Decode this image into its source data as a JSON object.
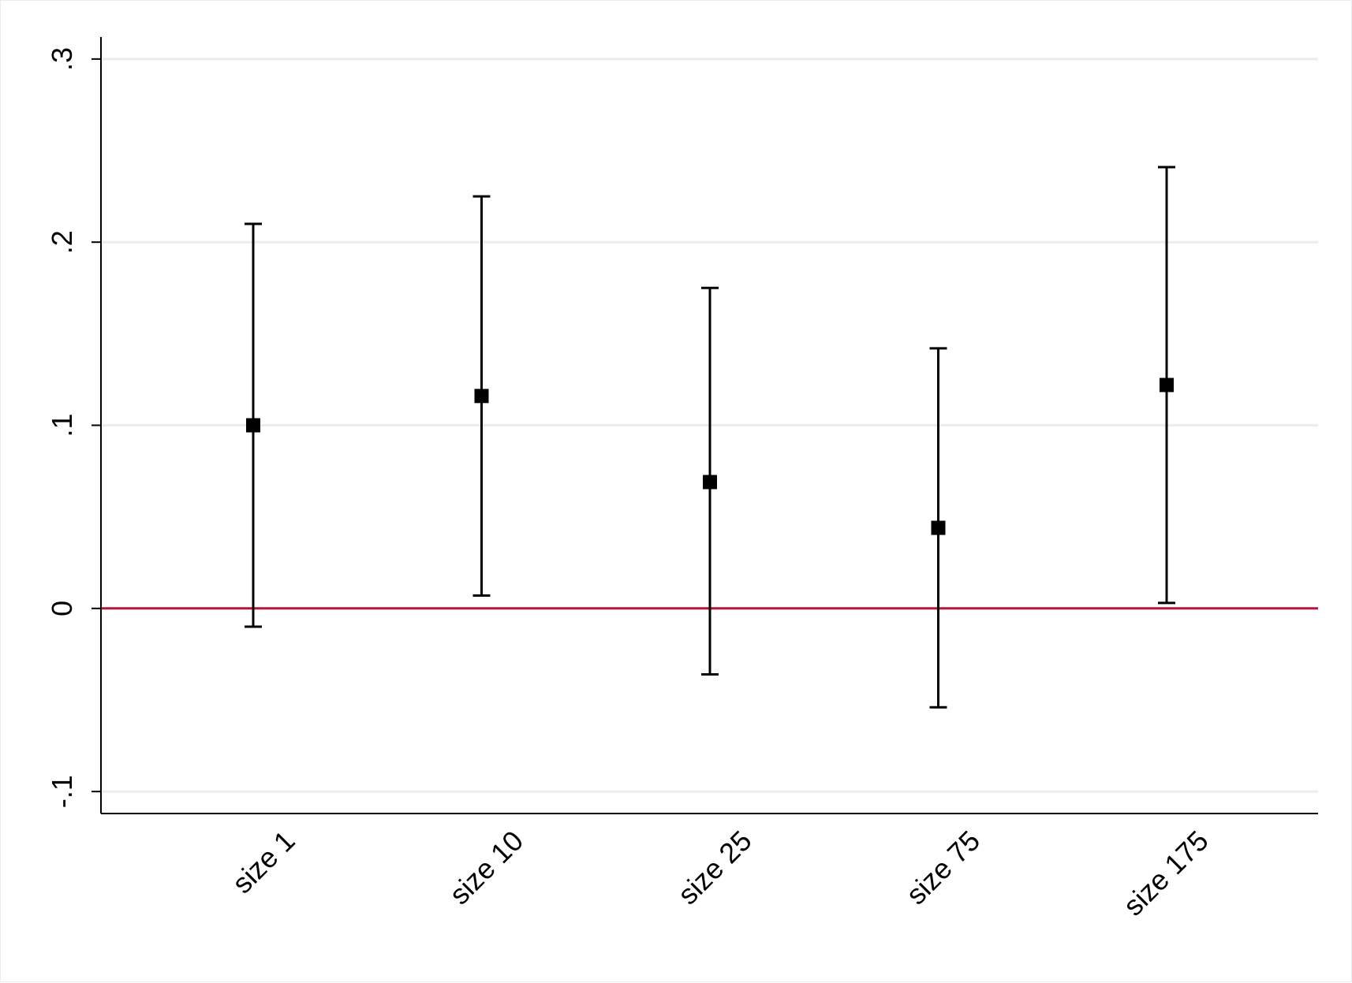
{
  "chart_data": {
    "type": "scatter",
    "subtype": "coefficient plot with confidence intervals",
    "categories": [
      "size 1",
      "size 10",
      "size 25",
      "size 75",
      "size 175"
    ],
    "estimates": [
      0.1,
      0.116,
      0.069,
      0.044,
      0.122
    ],
    "ci_lower": [
      -0.01,
      0.007,
      -0.036,
      -0.054,
      0.003
    ],
    "ci_upper": [
      0.21,
      0.225,
      0.175,
      0.142,
      0.241
    ],
    "ylim": [
      -0.112,
      0.312
    ],
    "yticks": [
      -0.1,
      0,
      0.1,
      0.2,
      0.3
    ],
    "ytick_labels": [
      "-.1",
      "0",
      ".1",
      ".2",
      ".3"
    ],
    "reference_line": {
      "y": 0,
      "color": "#b5173a"
    },
    "grid": true,
    "grid_color": "#e8eef0",
    "marker": "square",
    "marker_color": "#000000",
    "title": "",
    "xlabel": "",
    "ylabel": ""
  }
}
